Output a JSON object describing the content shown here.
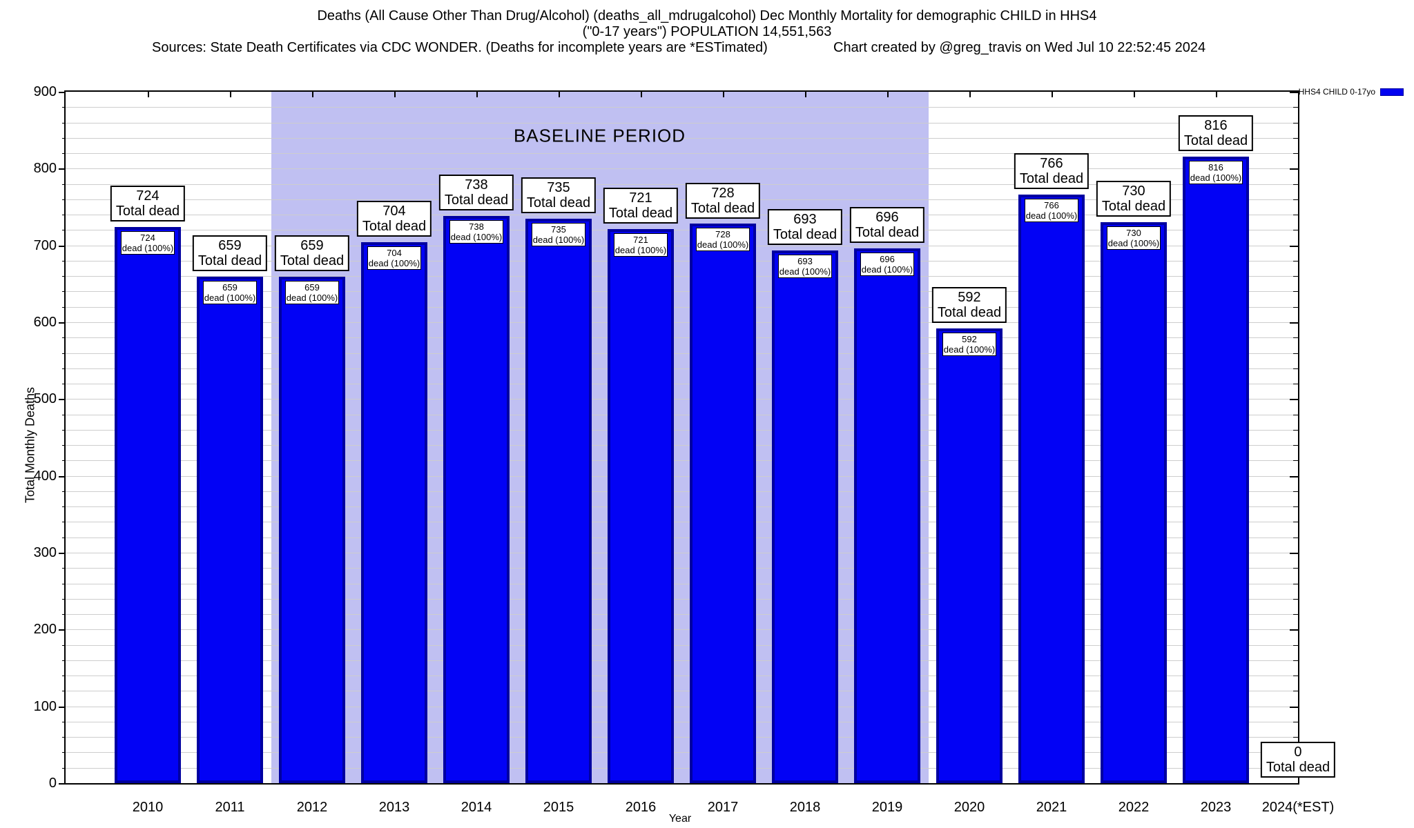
{
  "header": {
    "title_line1": "Deaths (All Cause Other Than Drug/Alcohol) (deaths_all_mdrugalcohol) Dec Monthly Mortality for demographic CHILD in HHS4",
    "title_line2": "(\"0-17 years\") POPULATION 14,551,563",
    "sources": "Sources: State Death Certificates via CDC WONDER. (Deaths for incomplete years are *ESTimated)",
    "credit": "Chart created by @greg_travis on Wed Jul 10 22:52:45 2024"
  },
  "legend": {
    "label": "HHS4 CHILD 0-17yo",
    "swatch_color": "#0202f0"
  },
  "chart_data": {
    "type": "bar",
    "title": "Deaths (All Cause Other Than Drug/Alcohol) Dec Monthly Mortality for demographic CHILD in HHS4",
    "categories": [
      "2010",
      "2011",
      "2012",
      "2013",
      "2014",
      "2015",
      "2016",
      "2017",
      "2018",
      "2019",
      "2020",
      "2021",
      "2022",
      "2023",
      "2024(*EST)"
    ],
    "values": [
      724,
      659,
      659,
      704,
      738,
      735,
      721,
      728,
      693,
      696,
      592,
      766,
      730,
      816,
      0
    ],
    "xlabel": "Year",
    "ylabel": "Total Monthly Deaths",
    "ylim": [
      0,
      900
    ],
    "yticks": [
      0,
      100,
      200,
      300,
      400,
      500,
      600,
      700,
      800,
      900
    ],
    "minor_grid_step": 20,
    "grid": true,
    "legend_position": "top-right",
    "bar_label_top_suffix": "Total dead",
    "bar_label_inner_suffix": "dead (100%)",
    "baseline": {
      "label": "BASELINE PERIOD",
      "start_category": "2012",
      "end_category": "2019",
      "start_index": 2,
      "end_index": 9
    },
    "colors": {
      "bar_fill": "#0202f5",
      "bar_border": "#0000a0",
      "baseline_bg": "#c0c0f2",
      "grid": "#cdcdcd",
      "text": "#000000"
    }
  }
}
